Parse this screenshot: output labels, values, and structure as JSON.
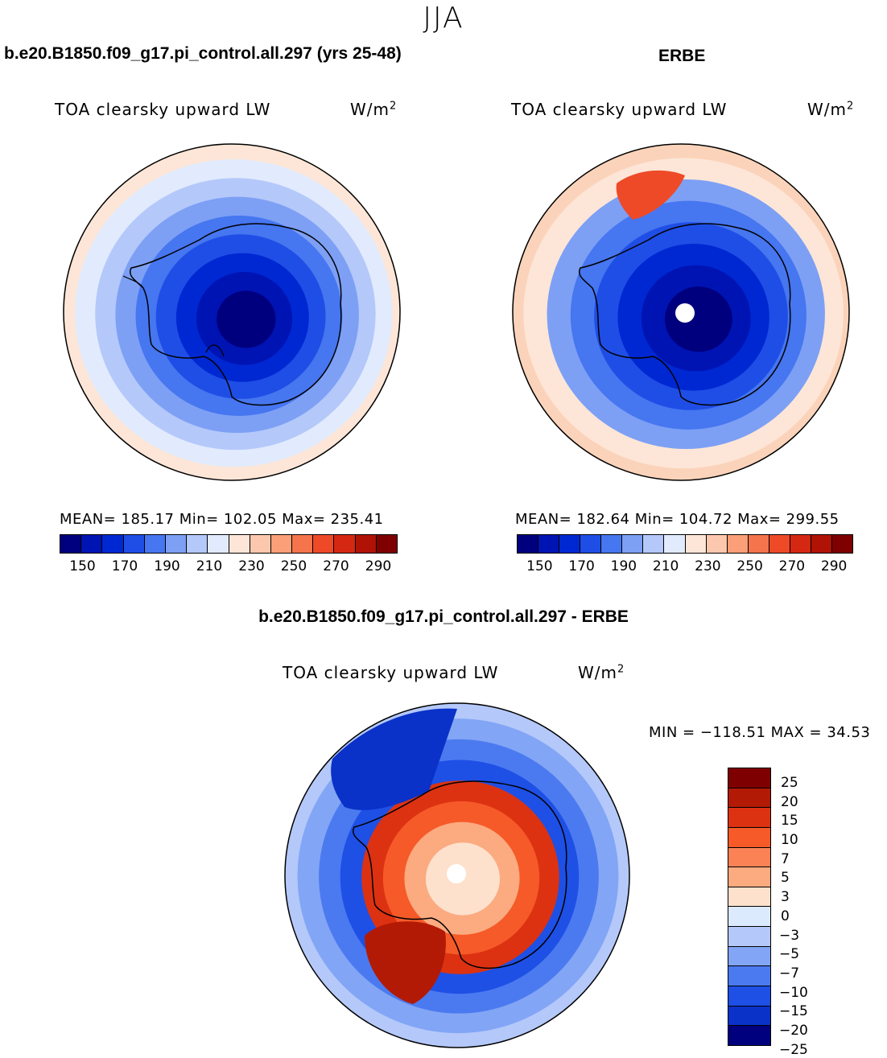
{
  "figure": {
    "season": "JJA",
    "model_title": "b.e20.B1850.f09_g17.pi_control.all.297 (yrs 25-48)",
    "obs_title": "ERBE",
    "diff_title": "b.e20.B1850.f09_g17.pi_control.all.297 - ERBE"
  },
  "panels": {
    "model": {
      "variable": "TOA clearsky upward LW",
      "units_base": "W/m",
      "units_sup": "2",
      "stats": "MEAN= 185.17   Min= 102.05   Max= 235.41"
    },
    "obs": {
      "variable": "TOA clearsky upward LW",
      "units_base": "W/m",
      "units_sup": "2",
      "stats": "MEAN= 182.64   Min= 104.72   Max= 299.55"
    },
    "diff": {
      "variable": "TOA clearsky upward LW",
      "units_base": "W/m",
      "units_sup": "2",
      "stats": "MIN = −118.51  MAX =   34.53"
    }
  },
  "colorbar_main": {
    "colors": [
      "#00007f",
      "#0014b4",
      "#0028d2",
      "#1f4ee6",
      "#4676f0",
      "#7da0f5",
      "#b4c8fa",
      "#e1ebfd",
      "#fde6d7",
      "#fcc8ad",
      "#fa9f78",
      "#f5744c",
      "#ee4a28",
      "#d52812",
      "#b01206",
      "#7f0000"
    ],
    "ticks": [
      "150",
      "170",
      "190",
      "210",
      "230",
      "250",
      "270",
      "290"
    ]
  },
  "colorbar_diff": {
    "colors": [
      "#7f0000",
      "#b31a06",
      "#dc3212",
      "#f55a28",
      "#fa8255",
      "#fcaa80",
      "#fde1cd",
      "#dceafd",
      "#b4c8fa",
      "#82a5f5",
      "#4b7af0",
      "#1e50e6",
      "#0a32c8",
      "#00007f"
    ],
    "ticks": [
      "25",
      "20",
      "15",
      "10",
      "7",
      "5",
      "3",
      "0",
      "−3",
      "−5",
      "−7",
      "−10",
      "−15",
      "−20",
      "−25"
    ]
  },
  "map_colors": {
    "model_rings": [
      "#fde6d7",
      "#e1ebfd",
      "#b4c8fa",
      "#7da0f5",
      "#4676f0",
      "#1f4ee6",
      "#0028d2",
      "#0014b4",
      "#00007f"
    ],
    "obs_rings": [
      "#fbd3ba",
      "#fde6d7",
      "#7da0f5",
      "#4676f0",
      "#1f4ee6",
      "#0028d2",
      "#0014b4",
      "#00007f"
    ],
    "obs_hotspot": "#ee4a28",
    "diff_rings": [
      "#b4c8fa",
      "#82a5f5",
      "#4b7af0",
      "#1e50e6",
      "#dc3212",
      "#f55a28",
      "#fcaa80",
      "#fde1cd"
    ],
    "diff_polar_cap": "#0a32c8",
    "diff_hotspot": "#b31a06",
    "missing": "#ffffff",
    "coast": "#000000"
  }
}
